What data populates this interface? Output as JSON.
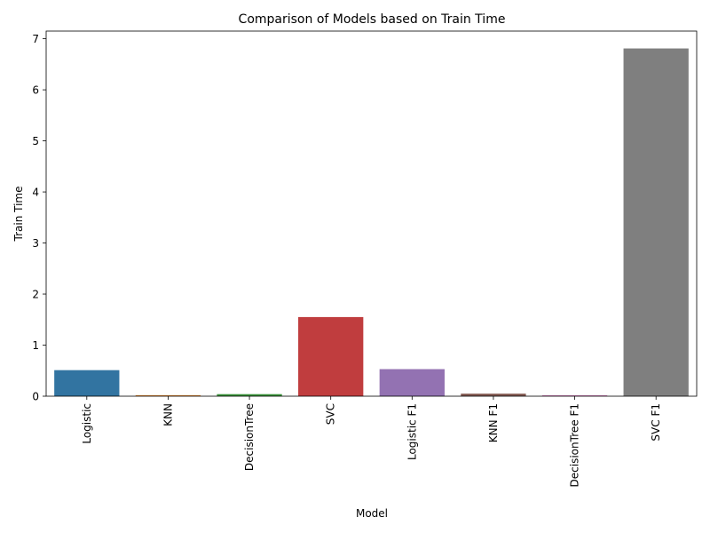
{
  "chart_data": {
    "type": "bar",
    "title": "Comparison of Models based on Train Time",
    "xlabel": "Model",
    "ylabel": "Train Time",
    "categories": [
      "Logistic",
      "KNN",
      "DecisionTree",
      "SVC",
      "Logistic F1",
      "KNN F1",
      "DecisionTree F1",
      "SVC F1"
    ],
    "values": [
      0.51,
      0.02,
      0.04,
      1.55,
      0.53,
      0.05,
      0.02,
      6.81
    ],
    "colors": [
      "#3274a1",
      "#e1812c",
      "#3a923a",
      "#c03d3e",
      "#9372b2",
      "#845b53",
      "#d684bd",
      "#7f7f7f"
    ],
    "ylim": [
      0,
      7.15
    ],
    "yticks": [
      0,
      1,
      2,
      3,
      4,
      5,
      6,
      7
    ],
    "grid": false,
    "legend": "none"
  }
}
